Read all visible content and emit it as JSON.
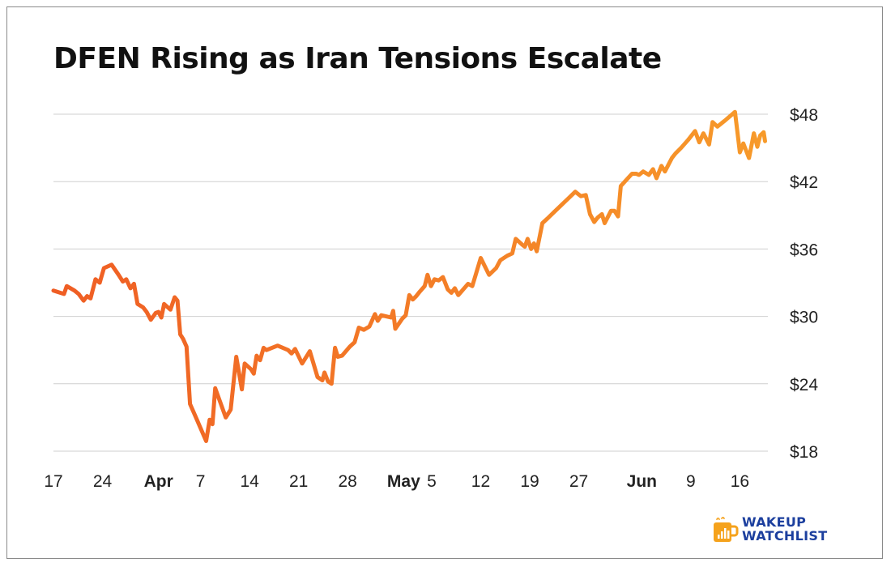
{
  "chart_data": {
    "type": "line",
    "title": "DFEN Rising as Iran Tensions Escalate",
    "xlabel": "",
    "ylabel": "",
    "ylim": [
      18,
      48
    ],
    "y_ticks": [
      "$48",
      "$42",
      "$36",
      "$30",
      "$24",
      "$18"
    ],
    "y_tick_values": [
      48,
      42,
      36,
      30,
      24,
      18
    ],
    "x_ticks": [
      {
        "day": 0,
        "label": "17",
        "bold": false
      },
      {
        "day": 7,
        "label": "24",
        "bold": false
      },
      {
        "day": 15,
        "label": "Apr",
        "bold": true
      },
      {
        "day": 21,
        "label": "7",
        "bold": false
      },
      {
        "day": 28,
        "label": "14",
        "bold": false
      },
      {
        "day": 35,
        "label": "21",
        "bold": false
      },
      {
        "day": 42,
        "label": "28",
        "bold": false
      },
      {
        "day": 50,
        "label": "May",
        "bold": true
      },
      {
        "day": 54,
        "label": "5",
        "bold": false
      },
      {
        "day": 61,
        "label": "12",
        "bold": false
      },
      {
        "day": 68,
        "label": "19",
        "bold": false
      },
      {
        "day": 75,
        "label": "27",
        "bold": false
      },
      {
        "day": 84,
        "label": "Jun",
        "bold": true
      },
      {
        "day": 91,
        "label": "9",
        "bold": false
      },
      {
        "day": 98,
        "label": "16",
        "bold": false
      }
    ],
    "xlim": [
      0,
      102
    ],
    "grid": true,
    "legend": "none",
    "series": [
      {
        "color_start": "#ef5d24",
        "color_end": "#f79a2a",
        "points": [
          [
            0,
            32.3
          ],
          [
            1,
            32.1
          ],
          [
            1.5,
            32.0
          ],
          [
            1.9,
            32.7
          ],
          [
            3,
            32.3
          ],
          [
            3.6,
            32.0
          ],
          [
            4.3,
            31.4
          ],
          [
            4.8,
            31.8
          ],
          [
            5.3,
            31.6
          ],
          [
            6,
            33.3
          ],
          [
            6.6,
            33.0
          ],
          [
            7.2,
            34.3
          ],
          [
            8.3,
            34.6
          ],
          [
            9.3,
            33.7
          ],
          [
            9.9,
            33.1
          ],
          [
            10.4,
            33.3
          ],
          [
            11,
            32.5
          ],
          [
            11.5,
            32.9
          ],
          [
            12,
            31.1
          ],
          [
            12.8,
            30.8
          ],
          [
            13.3,
            30.4
          ],
          [
            13.9,
            29.7
          ],
          [
            14.6,
            30.3
          ],
          [
            15,
            30.4
          ],
          [
            15.4,
            29.9
          ],
          [
            15.8,
            31.1
          ],
          [
            16.7,
            30.6
          ],
          [
            17.3,
            31.7
          ],
          [
            17.7,
            31.4
          ],
          [
            18.1,
            28.4
          ],
          [
            18.5,
            28.0
          ],
          [
            19,
            27.3
          ],
          [
            19.5,
            22.2
          ],
          [
            20.2,
            21.2
          ],
          [
            21.8,
            18.9
          ],
          [
            22.3,
            20.8
          ],
          [
            22.7,
            20.4
          ],
          [
            23.1,
            23.6
          ],
          [
            24.6,
            21.0
          ],
          [
            25.3,
            21.7
          ],
          [
            26.1,
            26.4
          ],
          [
            26.9,
            23.5
          ],
          [
            27.3,
            25.8
          ],
          [
            28.2,
            25.3
          ],
          [
            28.6,
            24.9
          ],
          [
            29,
            26.5
          ],
          [
            29.5,
            26.1
          ],
          [
            30,
            27.2
          ],
          [
            30.4,
            27.0
          ],
          [
            31.2,
            27.2
          ],
          [
            32,
            27.4
          ],
          [
            33.5,
            27.0
          ],
          [
            34,
            26.7
          ],
          [
            34.5,
            27.1
          ],
          [
            35.5,
            25.8
          ],
          [
            36.6,
            26.9
          ],
          [
            37.7,
            24.6
          ],
          [
            38.4,
            24.3
          ],
          [
            38.7,
            25.0
          ],
          [
            39.2,
            24.2
          ],
          [
            39.7,
            24.0
          ],
          [
            40.2,
            27.2
          ],
          [
            40.6,
            26.4
          ],
          [
            41.2,
            26.5
          ],
          [
            42.3,
            27.3
          ],
          [
            43,
            27.7
          ],
          [
            43.6,
            29.0
          ],
          [
            44.3,
            28.8
          ],
          [
            45.1,
            29.1
          ],
          [
            45.9,
            30.2
          ],
          [
            46.3,
            29.6
          ],
          [
            46.8,
            30.1
          ],
          [
            47.5,
            30.0
          ],
          [
            48.2,
            29.9
          ],
          [
            48.5,
            30.5
          ],
          [
            48.8,
            28.9
          ],
          [
            49.8,
            29.8
          ],
          [
            50.3,
            30.1
          ],
          [
            50.8,
            31.9
          ],
          [
            51.3,
            31.5
          ],
          [
            51.8,
            31.8
          ],
          [
            52.3,
            32.2
          ],
          [
            53,
            32.7
          ],
          [
            53.4,
            33.7
          ],
          [
            53.9,
            32.7
          ],
          [
            54.4,
            33.3
          ],
          [
            55,
            33.2
          ],
          [
            55.6,
            33.5
          ],
          [
            56.3,
            32.4
          ],
          [
            56.8,
            32.1
          ],
          [
            57.3,
            32.5
          ],
          [
            57.8,
            31.9
          ],
          [
            59.2,
            32.9
          ],
          [
            59.8,
            32.7
          ],
          [
            61,
            35.2
          ],
          [
            62.2,
            33.7
          ],
          [
            63.2,
            34.3
          ],
          [
            63.8,
            35.0
          ],
          [
            64.8,
            35.4
          ],
          [
            65.5,
            35.6
          ],
          [
            66,
            36.9
          ],
          [
            66.9,
            36.4
          ],
          [
            67.3,
            36.2
          ],
          [
            67.7,
            36.9
          ],
          [
            68.2,
            36.0
          ],
          [
            68.6,
            36.5
          ],
          [
            69,
            35.8
          ],
          [
            69.8,
            38.3
          ],
          [
            70.5,
            38.7
          ],
          [
            71.5,
            39.3
          ],
          [
            72.5,
            39.9
          ],
          [
            73.5,
            40.5
          ],
          [
            74.5,
            41.1
          ],
          [
            75.3,
            40.7
          ],
          [
            76,
            40.8
          ],
          [
            76.6,
            39.1
          ],
          [
            77.2,
            38.4
          ],
          [
            77.7,
            38.8
          ],
          [
            78.3,
            39.1
          ],
          [
            78.7,
            38.3
          ],
          [
            79.6,
            39.4
          ],
          [
            80.1,
            39.4
          ],
          [
            80.6,
            38.9
          ],
          [
            81,
            41.6
          ],
          [
            82.6,
            42.7
          ],
          [
            83.2,
            42.7
          ],
          [
            83.6,
            42.6
          ],
          [
            84.2,
            42.9
          ],
          [
            85,
            42.6
          ],
          [
            85.6,
            43.1
          ],
          [
            86.1,
            42.3
          ],
          [
            86.8,
            43.4
          ],
          [
            87.3,
            42.9
          ],
          [
            88.3,
            44.1
          ],
          [
            88.8,
            44.5
          ],
          [
            89.6,
            45.0
          ],
          [
            90.6,
            45.7
          ],
          [
            91.6,
            46.5
          ],
          [
            92.2,
            45.5
          ],
          [
            92.8,
            46.3
          ],
          [
            93.6,
            45.3
          ],
          [
            94.1,
            47.3
          ],
          [
            94.8,
            46.9
          ],
          [
            96,
            47.5
          ],
          [
            97.3,
            48.2
          ],
          [
            98,
            44.6
          ],
          [
            98.5,
            45.4
          ],
          [
            99.3,
            44.1
          ],
          [
            100,
            46.3
          ],
          [
            100.5,
            45.1
          ],
          [
            100.9,
            46.1
          ],
          [
            101.4,
            46.4
          ],
          [
            101.6,
            45.6
          ]
        ]
      }
    ]
  },
  "brand": {
    "line1": "WAKEUP",
    "line2": "WATCHLIST",
    "text_color": "#1c3f9e",
    "mug_color": "#f5a21c"
  },
  "colors": {
    "grid": "#cfcfcf",
    "text": "#222222",
    "line_left": "#ef5d24",
    "line_right": "#f79a2a"
  }
}
